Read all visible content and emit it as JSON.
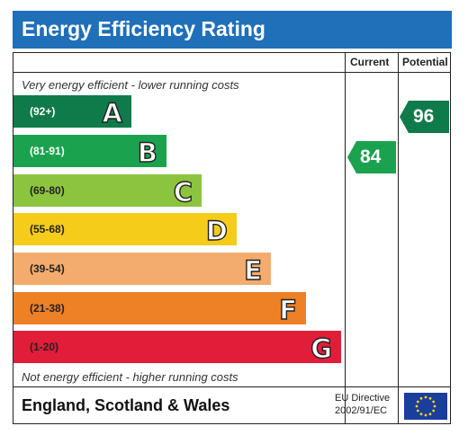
{
  "header": {
    "title": "Energy Efficiency Rating",
    "color": "#1f6fb9"
  },
  "columns": {
    "current": "Current",
    "potential": "Potential"
  },
  "notes": {
    "top": "Very energy efficient - lower running costs",
    "bottom": "Not energy efficient - higher running costs"
  },
  "bands": [
    {
      "range": "(92+)",
      "letter": "A",
      "color": "#0f7b4b",
      "range_color": "#ffffff"
    },
    {
      "range": "(81-91)",
      "letter": "B",
      "color": "#1ba24e",
      "range_color": "#ffffff"
    },
    {
      "range": "(69-80)",
      "letter": "C",
      "color": "#8cc43f",
      "range_color": "#222222"
    },
    {
      "range": "(55-68)",
      "letter": "D",
      "color": "#f6cc1a",
      "range_color": "#222222"
    },
    {
      "range": "(39-54)",
      "letter": "E",
      "color": "#f3ac6d",
      "range_color": "#222222"
    },
    {
      "range": "(21-38)",
      "letter": "F",
      "color": "#ee8026",
      "range_color": "#222222"
    },
    {
      "range": "(1-20)",
      "letter": "G",
      "color": "#e21d3a",
      "range_color": "#222222"
    }
  ],
  "ratings": {
    "current": {
      "value": "84",
      "band": "B",
      "color": "#1ba24e"
    },
    "potential": {
      "value": "96",
      "band": "A",
      "color": "#0f7b4b"
    }
  },
  "footer": {
    "region": "England, Scotland & Wales",
    "directive_line1": "EU Directive",
    "directive_line2": "2002/91/EC"
  }
}
